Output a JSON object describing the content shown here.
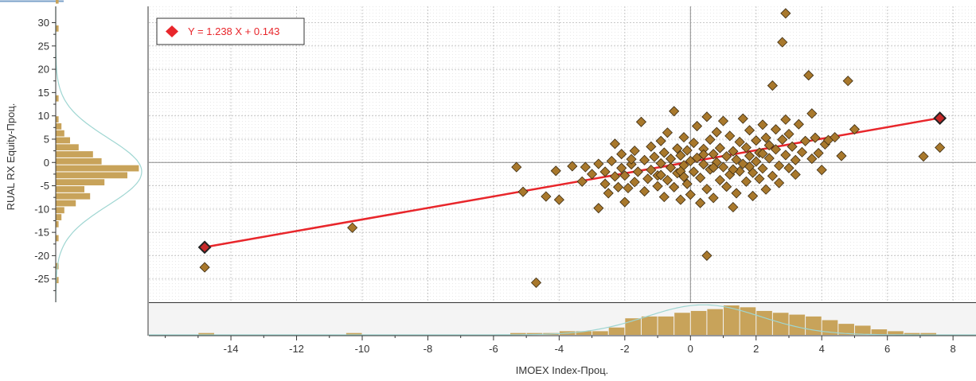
{
  "chart_data": {
    "type": "scatter",
    "xlabel": "IMOEX Index-Проц.",
    "ylabel": "RUAL RX Equity-Проц.",
    "xlim": [
      -16.5,
      8.7
    ],
    "ylim": [
      -30,
      33.5
    ],
    "x_ticks": [
      "-14",
      "-12",
      "-10",
      "-8",
      "-6",
      "-4",
      "-2",
      "0",
      "2",
      "4",
      "6",
      "8"
    ],
    "y_ticks": [
      "30",
      "25",
      "20",
      "15",
      "10",
      "5",
      "0",
      "-5",
      "-10",
      "-15",
      "-20",
      "-25"
    ],
    "legend": {
      "label": "Y = 1.238 X + 0.143",
      "position": "top-left"
    },
    "regression": {
      "slope": 1.238,
      "intercept": 0.143,
      "x_from": -14.8,
      "x_to": 7.6
    },
    "highlighted_points": [
      {
        "x": -14.8,
        "y": -18.2
      },
      {
        "x": 7.6,
        "y": 9.5
      }
    ],
    "points": [
      [
        -14.8,
        -22.5
      ],
      [
        -10.3,
        -14
      ],
      [
        -5.3,
        -1
      ],
      [
        -5.1,
        -6.3
      ],
      [
        -4.7,
        -25.8
      ],
      [
        -4.4,
        -7.3
      ],
      [
        -4.1,
        -1.8
      ],
      [
        -4.0,
        -8
      ],
      [
        -3.6,
        -0.8
      ],
      [
        -3.3,
        -4.1
      ],
      [
        -3.2,
        -1
      ],
      [
        -3.0,
        -2.5
      ],
      [
        -2.8,
        -9.8
      ],
      [
        -2.8,
        -0.3
      ],
      [
        -2.6,
        -4.6
      ],
      [
        -2.6,
        -2
      ],
      [
        -2.5,
        -6.6
      ],
      [
        -2.4,
        0.3
      ],
      [
        -2.3,
        -3
      ],
      [
        -2.3,
        4
      ],
      [
        -2.2,
        -5.3
      ],
      [
        -2.1,
        -1.2
      ],
      [
        -2.1,
        1.8
      ],
      [
        -2.0,
        -2.8
      ],
      [
        -2.0,
        -8.5
      ],
      [
        -1.9,
        -5.5
      ],
      [
        -1.8,
        -0.4
      ],
      [
        -1.7,
        2.5
      ],
      [
        -1.7,
        -4.2
      ],
      [
        -1.6,
        -2
      ],
      [
        -1.5,
        8.7
      ],
      [
        -1.4,
        -6.2
      ],
      [
        -1.4,
        0.5
      ],
      [
        -1.3,
        -3.5
      ],
      [
        -1.2,
        3.4
      ],
      [
        -1.2,
        -1.6
      ],
      [
        -1.1,
        1.2
      ],
      [
        -1.0,
        -5.1
      ],
      [
        -1.0,
        -2.8
      ],
      [
        -0.9,
        4.6
      ],
      [
        -0.9,
        -0.2
      ],
      [
        -0.8,
        -7.4
      ],
      [
        -0.8,
        2.1
      ],
      [
        -0.7,
        -3.8
      ],
      [
        -0.7,
        6.4
      ],
      [
        -0.6,
        -1.1
      ],
      [
        -0.6,
        0.8
      ],
      [
        -0.5,
        11
      ],
      [
        -0.5,
        -5.3
      ],
      [
        -0.4,
        3
      ],
      [
        -0.4,
        -2.3
      ],
      [
        -0.3,
        1.5
      ],
      [
        -0.3,
        -8
      ],
      [
        -0.2,
        5.4
      ],
      [
        -0.2,
        -0.6
      ],
      [
        -0.1,
        -4.6
      ],
      [
        -0.1,
        2.6
      ],
      [
        0.0,
        0.3
      ],
      [
        0.0,
        -6.9
      ],
      [
        0.1,
        4.2
      ],
      [
        0.1,
        -2
      ],
      [
        0.2,
        1
      ],
      [
        0.2,
        7.8
      ],
      [
        0.3,
        -3.3
      ],
      [
        0.3,
        -8.7
      ],
      [
        0.4,
        2.9
      ],
      [
        0.4,
        -0.4
      ],
      [
        0.5,
        9.8
      ],
      [
        0.5,
        -5.7
      ],
      [
        0.5,
        -20
      ],
      [
        0.6,
        4.9
      ],
      [
        0.6,
        -1.5
      ],
      [
        0.7,
        1.8
      ],
      [
        0.7,
        -7.6
      ],
      [
        0.8,
        0
      ],
      [
        0.8,
        6.5
      ],
      [
        0.9,
        -3.8
      ],
      [
        0.9,
        3.1
      ],
      [
        1.0,
        -1
      ],
      [
        1.0,
        8.9
      ],
      [
        1.1,
        -5.2
      ],
      [
        1.1,
        1.3
      ],
      [
        1.2,
        5.7
      ],
      [
        1.2,
        -2.6
      ],
      [
        1.3,
        -9.6
      ],
      [
        1.3,
        2.4
      ],
      [
        1.4,
        0.6
      ],
      [
        1.4,
        -6.6
      ],
      [
        1.5,
        4.4
      ],
      [
        1.5,
        -1.9
      ],
      [
        1.6,
        9.4
      ],
      [
        1.6,
        -0.3
      ],
      [
        1.7,
        3.2
      ],
      [
        1.7,
        -4.1
      ],
      [
        1.8,
        1.4
      ],
      [
        1.8,
        6.9
      ],
      [
        1.9,
        -2.2
      ],
      [
        1.9,
        -7.2
      ],
      [
        2.0,
        4.7
      ],
      [
        2.0,
        0.2
      ],
      [
        2.1,
        -3.5
      ],
      [
        2.1,
        2.1
      ],
      [
        2.2,
        8.1
      ],
      [
        2.2,
        -1.3
      ],
      [
        2.3,
        5.3
      ],
      [
        2.3,
        -5.8
      ],
      [
        2.4,
        0.9
      ],
      [
        2.4,
        3.7
      ],
      [
        2.5,
        -2.9
      ],
      [
        2.5,
        16.5
      ],
      [
        2.6,
        7.1
      ],
      [
        2.6,
        2.8
      ],
      [
        2.7,
        -0.7
      ],
      [
        2.7,
        -4.4
      ],
      [
        2.8,
        4.9
      ],
      [
        2.8,
        25.8
      ],
      [
        2.9,
        1.6
      ],
      [
        2.9,
        9.2
      ],
      [
        2.9,
        32
      ],
      [
        3.0,
        -1.2
      ],
      [
        3.0,
        6.1
      ],
      [
        3.1,
        3.4
      ],
      [
        3.2,
        0.5
      ],
      [
        3.2,
        -2.6
      ],
      [
        3.3,
        8.2
      ],
      [
        3.4,
        2.2
      ],
      [
        3.5,
        4.6
      ],
      [
        3.6,
        18.7
      ],
      [
        3.7,
        0.8
      ],
      [
        3.7,
        10.5
      ],
      [
        3.8,
        5.3
      ],
      [
        3.9,
        2
      ],
      [
        4.0,
        -1.6
      ],
      [
        4.1,
        3.9
      ],
      [
        4.2,
        4.8
      ],
      [
        4.4,
        5.4
      ],
      [
        4.6,
        1.4
      ],
      [
        4.8,
        17.5
      ],
      [
        5.0,
        7.1
      ],
      [
        7.1,
        1.3
      ],
      [
        7.6,
        3.2
      ],
      [
        -0.3,
        -1.9
      ],
      [
        0.7,
        -1.1
      ],
      [
        1.3,
        -1.5
      ],
      [
        -0.9,
        -2.7
      ],
      [
        1.8,
        -0.9
      ],
      [
        0.4,
        1.7
      ],
      [
        -0.2,
        -3.1
      ],
      [
        2.2,
        1.9
      ],
      [
        -1.8,
        0.7
      ]
    ],
    "histogram_y": {
      "bin_start": -26,
      "bin_width": 1.5,
      "counts": [
        1,
        0,
        1,
        0,
        0,
        0,
        1,
        0,
        1,
        2,
        3,
        7,
        12,
        10,
        17,
        25,
        29,
        16,
        13,
        8,
        5,
        3,
        2,
        1,
        0,
        0,
        1,
        0,
        0,
        0,
        0,
        0,
        0,
        0,
        0,
        0,
        1,
        0,
        0,
        0,
        1
      ],
      "count_max": 30
    },
    "histogram_x": {
      "bin_start": -15,
      "bin_width": 0.5,
      "counts": [
        1,
        0,
        0,
        0,
        0,
        0,
        0,
        0,
        0,
        1,
        0,
        0,
        0,
        0,
        0,
        0,
        0,
        0,
        0,
        1,
        1,
        1,
        2,
        2,
        2,
        4,
        9,
        10,
        10,
        12,
        13,
        14,
        16,
        15,
        13,
        12,
        11,
        10,
        8,
        6,
        5,
        3,
        2,
        1,
        1,
        0,
        0,
        0,
        0,
        0,
        0,
        0,
        0,
        0,
        0,
        0,
        0,
        0,
        0,
        0,
        1
      ],
      "count_max": 16
    }
  }
}
